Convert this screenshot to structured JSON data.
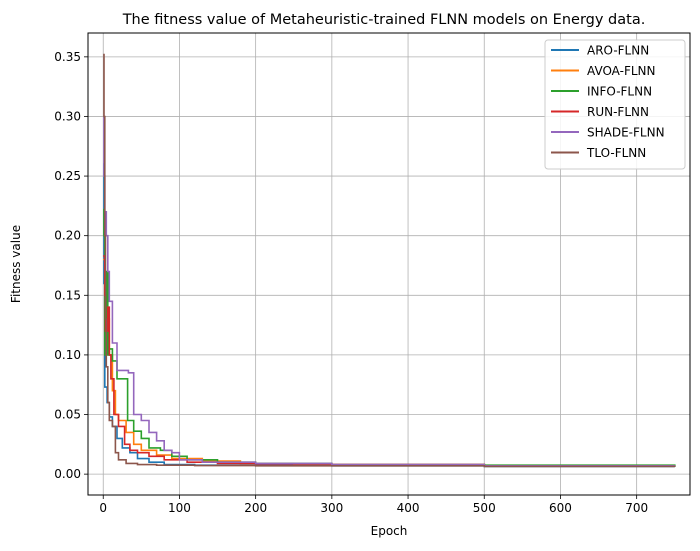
{
  "chart_data": {
    "type": "line",
    "title": "The fitness value of Metaheuristic-trained FLNN models on Energy data.",
    "xlabel": "Epoch",
    "ylabel": "Fitness value",
    "xlim": [
      -20,
      770
    ],
    "ylim": [
      -0.0175,
      0.37
    ],
    "xticks": [
      0,
      100,
      200,
      300,
      400,
      500,
      600,
      700
    ],
    "xtick_labels": [
      "0",
      "100",
      "200",
      "300",
      "400",
      "500",
      "600",
      "700"
    ],
    "yticks": [
      0.0,
      0.05,
      0.1,
      0.15,
      0.2,
      0.25,
      0.3,
      0.35
    ],
    "ytick_labels": [
      "0.00",
      "0.05",
      "0.10",
      "0.15",
      "0.20",
      "0.25",
      "0.30",
      "0.35"
    ],
    "grid": true,
    "legend_position": "top-right",
    "series": [
      {
        "name": "ARO-FLNN",
        "color": "#1f77b4",
        "x": [
          0,
          1,
          2,
          3,
          5,
          8,
          12,
          18,
          25,
          35,
          45,
          60,
          80,
          120,
          200,
          300,
          500,
          750
        ],
        "y": [
          0.26,
          0.16,
          0.073,
          0.073,
          0.06,
          0.048,
          0.04,
          0.03,
          0.022,
          0.018,
          0.013,
          0.01,
          0.008,
          0.0075,
          0.0075,
          0.007,
          0.0065,
          0.006
        ]
      },
      {
        "name": "AVOA-FLNN",
        "color": "#ff7f0e",
        "x": [
          0,
          2,
          5,
          8,
          12,
          16,
          20,
          30,
          40,
          50,
          70,
          90,
          130,
          180,
          250,
          300,
          500,
          750
        ],
        "y": [
          0.18,
          0.16,
          0.13,
          0.1,
          0.07,
          0.05,
          0.045,
          0.035,
          0.025,
          0.02,
          0.016,
          0.013,
          0.011,
          0.009,
          0.0085,
          0.008,
          0.007,
          0.007
        ]
      },
      {
        "name": "INFO-FLNN",
        "color": "#2ca02c",
        "x": [
          0,
          1,
          2,
          4,
          6,
          8,
          12,
          18,
          25,
          32,
          40,
          50,
          60,
          75,
          90,
          110,
          150,
          200,
          300,
          500,
          750
        ],
        "y": [
          0.222,
          0.2,
          0.1,
          0.17,
          0.1,
          0.105,
          0.095,
          0.08,
          0.08,
          0.045,
          0.036,
          0.03,
          0.022,
          0.02,
          0.015,
          0.012,
          0.01,
          0.009,
          0.008,
          0.0075,
          0.007
        ]
      },
      {
        "name": "RUN-FLNN",
        "color": "#d62728",
        "x": [
          0,
          2,
          3,
          6,
          8,
          10,
          14,
          20,
          28,
          35,
          45,
          60,
          80,
          110,
          150,
          200,
          300,
          500,
          750
        ],
        "y": [
          0.183,
          0.15,
          0.12,
          0.14,
          0.1,
          0.08,
          0.05,
          0.04,
          0.025,
          0.02,
          0.018,
          0.015,
          0.012,
          0.01,
          0.009,
          0.0085,
          0.008,
          0.007,
          0.007
        ]
      },
      {
        "name": "SHADE-FLNN",
        "color": "#9467bd",
        "x": [
          0,
          1,
          2,
          4,
          6,
          8,
          12,
          18,
          25,
          33,
          40,
          50,
          60,
          70,
          80,
          90,
          100,
          130,
          200,
          300,
          500,
          750
        ],
        "y": [
          0.3,
          0.25,
          0.22,
          0.2,
          0.17,
          0.145,
          0.11,
          0.087,
          0.087,
          0.085,
          0.05,
          0.045,
          0.035,
          0.028,
          0.02,
          0.018,
          0.012,
          0.01,
          0.009,
          0.008,
          0.007,
          0.007
        ]
      },
      {
        "name": "TLO-FLNN",
        "color": "#8c564b",
        "x": [
          0,
          1,
          2,
          3,
          4,
          6,
          8,
          12,
          16,
          20,
          30,
          45,
          70,
          120,
          200,
          300,
          500,
          750
        ],
        "y": [
          0.352,
          0.3,
          0.2,
          0.13,
          0.09,
          0.06,
          0.045,
          0.04,
          0.018,
          0.012,
          0.009,
          0.008,
          0.0075,
          0.0072,
          0.007,
          0.007,
          0.0065,
          0.006
        ]
      }
    ]
  }
}
